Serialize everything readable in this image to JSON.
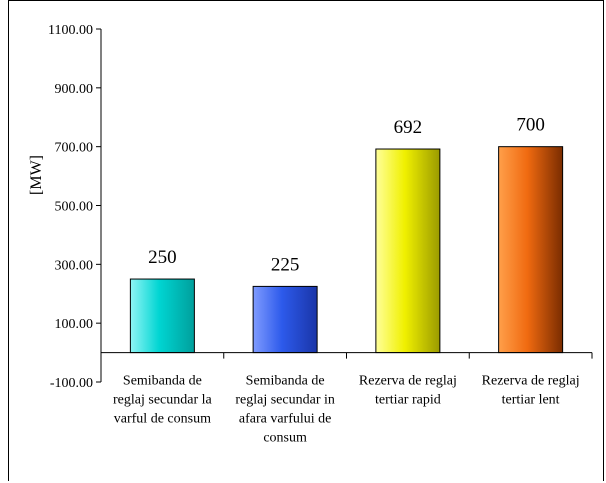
{
  "chart_data": {
    "type": "bar",
    "ylabel": "[MW]",
    "ylim": [
      -100,
      1100
    ],
    "yticks": [
      "1100.00",
      "900.00",
      "700.00",
      "500.00",
      "300.00",
      "100.00",
      "-100.00"
    ],
    "categories": [
      [
        "Semibanda de",
        "reglaj secundar la",
        "varful de consum"
      ],
      [
        "Semibanda de",
        "reglaj secundar in",
        "afara varfului de",
        "consum"
      ],
      [
        "Rezerva de reglaj",
        "tertiar rapid"
      ],
      [
        "Rezerva de reglaj",
        "tertiar lent"
      ]
    ],
    "values": [
      250,
      225,
      692,
      700
    ],
    "data_labels": [
      "250",
      "225",
      "692",
      "700"
    ],
    "colors": [
      [
        "#8ff5f5",
        "#00d5d2",
        "#009f9c"
      ],
      [
        "#7f9bff",
        "#2d5aeb",
        "#1a35a8"
      ],
      [
        "#ffff9a",
        "#f0f000",
        "#9b9b00"
      ],
      [
        "#ff9f4a",
        "#f06a10",
        "#7a2c00"
      ]
    ]
  }
}
